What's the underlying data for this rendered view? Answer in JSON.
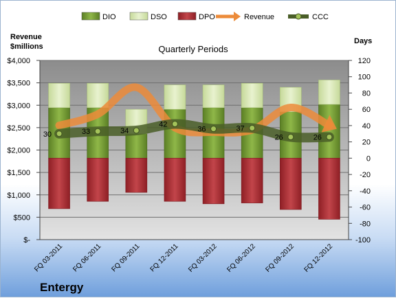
{
  "company": "Entergy",
  "chart_data": {
    "type": "bar",
    "title": "Quarterly Periods",
    "y_left_label": [
      "Revenue",
      "$millions"
    ],
    "y_right_label": "Days",
    "categories": [
      "FQ 03-2011",
      "FQ 06-2011",
      "FQ 09-2011",
      "FQ 12-2011",
      "FQ 03-2012",
      "FQ 06-2012",
      "FQ 09-2012",
      "FQ 12-2012"
    ],
    "y_left_ticks": [
      "$-",
      "$500",
      "$1,000",
      "$1,500",
      "$2,000",
      "$2,500",
      "$3,000",
      "$3,500",
      "$4,000"
    ],
    "y_left_range": [
      0,
      4000
    ],
    "y_right_ticks": [
      "-100",
      "-80",
      "-60",
      "-40",
      "-20",
      "0",
      "20",
      "40",
      "60",
      "80",
      "100",
      "120"
    ],
    "y_right_range": [
      -100,
      120
    ],
    "legend_position": "top",
    "series": [
      {
        "name": "DIO",
        "axis": "right",
        "values": [
          62,
          62,
          30,
          60,
          62,
          62,
          57,
          66
        ],
        "color": "#7aa33a"
      },
      {
        "name": "DSO",
        "axis": "right",
        "values": [
          30,
          30,
          30,
          30,
          28,
          30,
          30,
          30
        ],
        "color": "#d9e8b2"
      },
      {
        "name": "DPO",
        "axis": "right",
        "values": [
          -62,
          -53,
          -42,
          -53,
          -56,
          -55,
          -63,
          -75
        ],
        "color": "#b03238"
      },
      {
        "name": "Revenue",
        "axis": "left",
        "values": [
          2550,
          2800,
          3400,
          2500,
          2400,
          2450,
          2950,
          2550
        ],
        "color": "#ec8b3a"
      },
      {
        "name": "CCC",
        "axis": "right",
        "values": [
          30,
          33,
          34,
          42,
          36,
          37,
          26,
          26
        ],
        "color": "#556b2f"
      }
    ],
    "ccc_labels": [
      "30",
      "33",
      "34",
      "42",
      "36",
      "37",
      "26",
      "26"
    ],
    "colors": {
      "plot_bg_top": "#8c8c8c",
      "plot_bg_bottom": "#e3e3e3",
      "dio_dark": "#5b7f25",
      "dpo_dark": "#8e1f25"
    }
  }
}
